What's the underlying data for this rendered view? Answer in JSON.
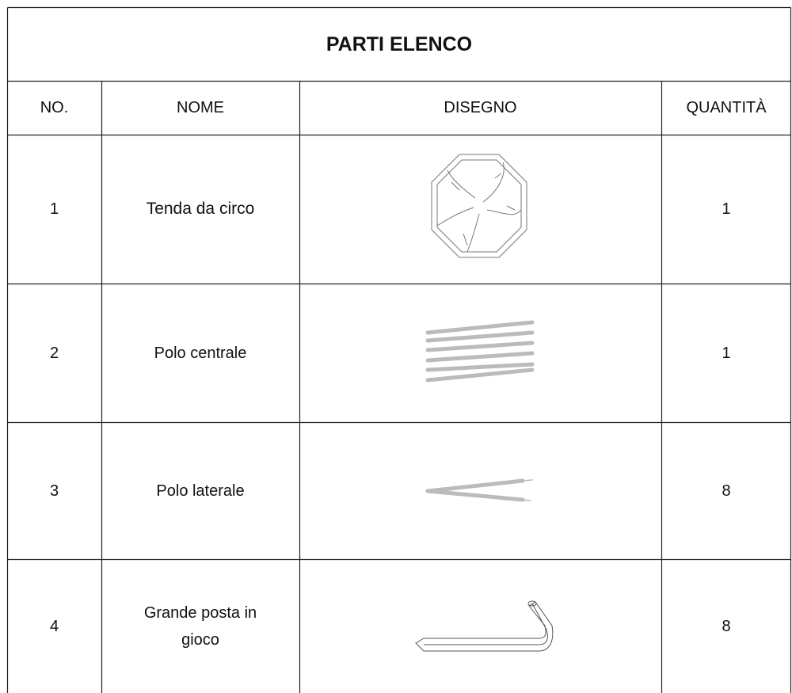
{
  "header": {
    "title": "PARTI ELENCO"
  },
  "table": {
    "columns": [
      "NO.",
      "NOME",
      "DISEGNO",
      "QUANTITÀ"
    ],
    "rows": [
      [
        "1",
        "Tenda da circo",
        "1"
      ],
      [
        "2",
        "Polo centrale",
        "1"
      ],
      [
        "3",
        "Polo laterale",
        "8"
      ],
      [
        "4",
        "Grande posta in gioco",
        "8"
      ]
    ]
  }
}
